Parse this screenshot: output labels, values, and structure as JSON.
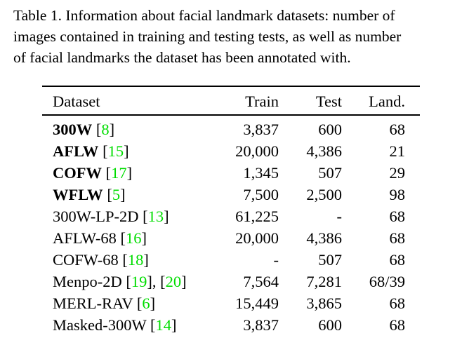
{
  "caption": {
    "lines": [
      "Table 1.  Information about facial landmark datasets:  number of",
      "images contained in training and testing tests, as well as number",
      "of facial landmarks the dataset has been annotated with."
    ]
  },
  "table": {
    "headers": [
      "Dataset",
      "Train",
      "Test",
      "Land."
    ],
    "rows": [
      {
        "name": "300W",
        "bold": true,
        "refs": [
          "8"
        ],
        "train": "3,837",
        "test": "600",
        "land": "68"
      },
      {
        "name": "AFLW",
        "bold": true,
        "refs": [
          "15"
        ],
        "train": "20,000",
        "test": "4,386",
        "land": "21"
      },
      {
        "name": "COFW",
        "bold": true,
        "refs": [
          "17"
        ],
        "train": "1,345",
        "test": "507",
        "land": "29"
      },
      {
        "name": "WFLW",
        "bold": true,
        "refs": [
          "5"
        ],
        "train": "7,500",
        "test": "2,500",
        "land": "98"
      },
      {
        "name": "300W-LP-2D",
        "bold": false,
        "refs": [
          "13"
        ],
        "train": "61,225",
        "test": "-",
        "land": "68"
      },
      {
        "name": "AFLW-68",
        "bold": false,
        "refs": [
          "16"
        ],
        "train": "20,000",
        "test": "4,386",
        "land": "68"
      },
      {
        "name": "COFW-68",
        "bold": false,
        "refs": [
          "18"
        ],
        "train": "-",
        "test": "507",
        "land": "68"
      },
      {
        "name": "Menpo-2D",
        "bold": false,
        "refs": [
          "19",
          "20"
        ],
        "train": "7,564",
        "test": "7,281",
        "land": "68/39"
      },
      {
        "name": "MERL-RAV",
        "bold": false,
        "refs": [
          "6"
        ],
        "train": "15,449",
        "test": "3,865",
        "land": "68"
      },
      {
        "name": "Masked-300W",
        "bold": false,
        "refs": [
          "14"
        ],
        "train": "3,837",
        "test": "600",
        "land": "68"
      }
    ]
  },
  "colors": {
    "citation": "#00dd00"
  }
}
